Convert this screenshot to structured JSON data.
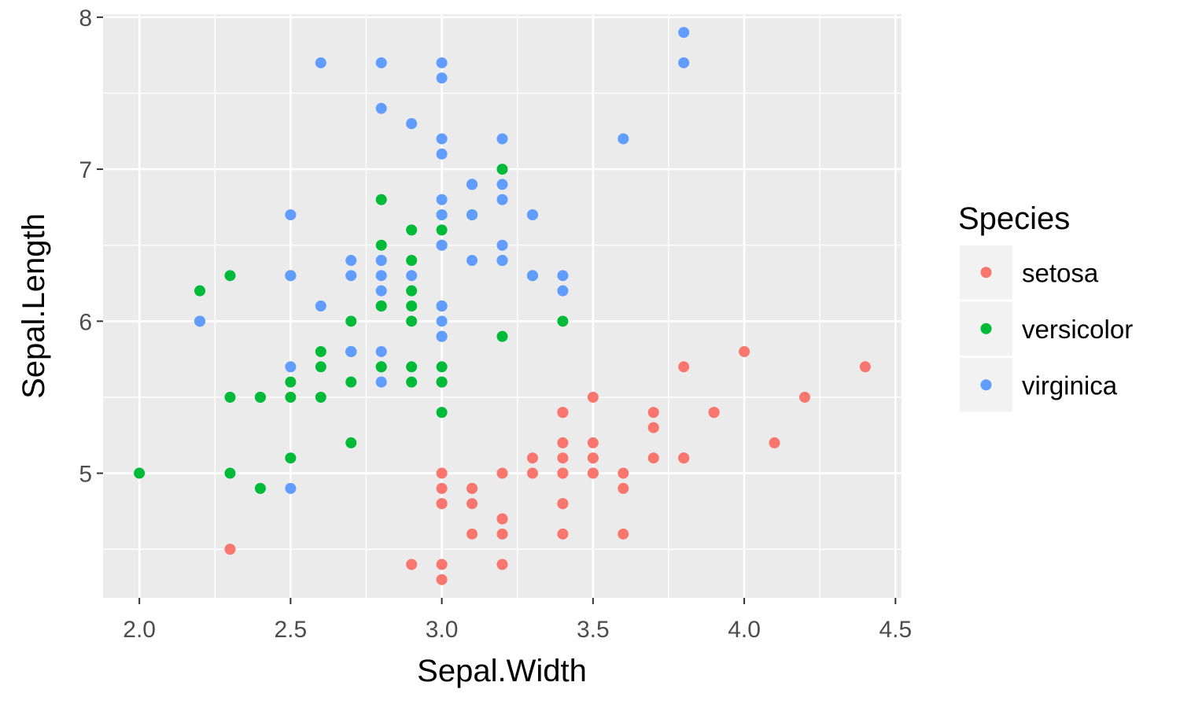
{
  "chart_data": {
    "type": "scatter",
    "xlabel": "Sepal.Width",
    "ylabel": "Sepal.Length",
    "xlim": [
      1.88,
      4.52
    ],
    "ylim": [
      4.18,
      8.02
    ],
    "x_ticks": [
      2.0,
      2.5,
      3.0,
      3.5,
      4.0,
      4.5
    ],
    "x_tick_labels": [
      "2.0",
      "2.5",
      "3.0",
      "3.5",
      "4.0",
      "4.5"
    ],
    "y_ticks": [
      5,
      6,
      7,
      8
    ],
    "y_tick_labels": [
      "5",
      "6",
      "7",
      "8"
    ],
    "grid": true,
    "legend": {
      "title": "Species",
      "position": "right"
    },
    "series": [
      {
        "name": "setosa",
        "color": "#F8766D",
        "points": [
          [
            3.5,
            5.1
          ],
          [
            3.0,
            4.9
          ],
          [
            3.2,
            4.7
          ],
          [
            3.1,
            4.6
          ],
          [
            3.6,
            5.0
          ],
          [
            3.9,
            5.4
          ],
          [
            3.4,
            4.6
          ],
          [
            3.4,
            5.0
          ],
          [
            2.9,
            4.4
          ],
          [
            3.1,
            4.9
          ],
          [
            3.7,
            5.4
          ],
          [
            3.4,
            4.8
          ],
          [
            3.0,
            4.8
          ],
          [
            3.0,
            4.3
          ],
          [
            4.0,
            5.8
          ],
          [
            4.4,
            5.7
          ],
          [
            3.9,
            5.4
          ],
          [
            3.5,
            5.1
          ],
          [
            3.8,
            5.7
          ],
          [
            3.8,
            5.1
          ],
          [
            3.4,
            5.4
          ],
          [
            3.7,
            5.1
          ],
          [
            3.6,
            4.6
          ],
          [
            3.3,
            5.1
          ],
          [
            3.4,
            4.8
          ],
          [
            3.0,
            5.0
          ],
          [
            3.4,
            5.0
          ],
          [
            3.5,
            5.2
          ],
          [
            3.4,
            5.2
          ],
          [
            3.2,
            4.7
          ],
          [
            3.1,
            4.8
          ],
          [
            3.4,
            5.4
          ],
          [
            4.1,
            5.2
          ],
          [
            4.2,
            5.5
          ],
          [
            3.1,
            4.9
          ],
          [
            3.2,
            5.0
          ],
          [
            3.5,
            5.5
          ],
          [
            3.6,
            4.9
          ],
          [
            3.0,
            4.4
          ],
          [
            3.4,
            5.1
          ],
          [
            3.5,
            5.0
          ],
          [
            2.3,
            4.5
          ],
          [
            3.2,
            4.4
          ],
          [
            3.5,
            5.0
          ],
          [
            3.8,
            5.1
          ],
          [
            3.0,
            4.8
          ],
          [
            3.8,
            5.1
          ],
          [
            3.2,
            4.6
          ],
          [
            3.7,
            5.3
          ],
          [
            3.3,
            5.0
          ]
        ]
      },
      {
        "name": "versicolor",
        "color": "#00BA38",
        "points": [
          [
            3.2,
            7.0
          ],
          [
            3.2,
            6.4
          ],
          [
            3.1,
            6.9
          ],
          [
            2.3,
            5.5
          ],
          [
            2.8,
            6.5
          ],
          [
            2.8,
            5.7
          ],
          [
            3.3,
            6.3
          ],
          [
            2.4,
            4.9
          ],
          [
            2.9,
            6.6
          ],
          [
            2.7,
            5.2
          ],
          [
            2.0,
            5.0
          ],
          [
            3.0,
            5.9
          ],
          [
            2.2,
            6.0
          ],
          [
            2.9,
            6.1
          ],
          [
            2.9,
            5.6
          ],
          [
            3.1,
            6.7
          ],
          [
            3.0,
            5.6
          ],
          [
            2.7,
            5.8
          ],
          [
            2.2,
            6.2
          ],
          [
            2.5,
            5.6
          ],
          [
            3.2,
            5.9
          ],
          [
            2.8,
            6.1
          ],
          [
            2.5,
            6.3
          ],
          [
            2.8,
            6.1
          ],
          [
            2.9,
            6.4
          ],
          [
            3.0,
            6.6
          ],
          [
            2.8,
            6.8
          ],
          [
            3.0,
            6.7
          ],
          [
            2.9,
            6.0
          ],
          [
            2.6,
            5.7
          ],
          [
            2.4,
            5.5
          ],
          [
            2.4,
            5.5
          ],
          [
            2.7,
            5.8
          ],
          [
            2.7,
            6.0
          ],
          [
            3.0,
            5.4
          ],
          [
            3.4,
            6.0
          ],
          [
            3.1,
            6.7
          ],
          [
            2.3,
            6.3
          ],
          [
            3.0,
            5.6
          ],
          [
            2.5,
            5.5
          ],
          [
            2.6,
            5.5
          ],
          [
            3.0,
            6.1
          ],
          [
            2.6,
            5.8
          ],
          [
            2.3,
            5.0
          ],
          [
            2.7,
            5.6
          ],
          [
            3.0,
            5.7
          ],
          [
            2.9,
            5.7
          ],
          [
            2.9,
            6.2
          ],
          [
            2.5,
            5.1
          ],
          [
            2.8,
            5.7
          ]
        ]
      },
      {
        "name": "virginica",
        "color": "#619CFF",
        "points": [
          [
            3.3,
            6.3
          ],
          [
            2.7,
            5.8
          ],
          [
            3.0,
            7.1
          ],
          [
            2.9,
            6.3
          ],
          [
            3.0,
            6.5
          ],
          [
            3.0,
            7.6
          ],
          [
            2.5,
            4.9
          ],
          [
            2.9,
            7.3
          ],
          [
            2.5,
            6.7
          ],
          [
            3.6,
            7.2
          ],
          [
            3.2,
            6.5
          ],
          [
            2.7,
            6.4
          ],
          [
            3.0,
            6.8
          ],
          [
            2.5,
            5.7
          ],
          [
            2.8,
            5.8
          ],
          [
            3.2,
            6.4
          ],
          [
            3.0,
            6.5
          ],
          [
            3.8,
            7.7
          ],
          [
            2.6,
            7.7
          ],
          [
            2.2,
            6.0
          ],
          [
            3.2,
            6.9
          ],
          [
            2.8,
            5.6
          ],
          [
            2.8,
            7.7
          ],
          [
            2.7,
            6.3
          ],
          [
            3.3,
            6.7
          ],
          [
            3.2,
            7.2
          ],
          [
            2.8,
            6.2
          ],
          [
            3.0,
            6.1
          ],
          [
            2.8,
            6.4
          ],
          [
            3.0,
            7.2
          ],
          [
            2.8,
            7.4
          ],
          [
            3.8,
            7.9
          ],
          [
            2.8,
            6.4
          ],
          [
            2.8,
            6.3
          ],
          [
            2.6,
            6.1
          ],
          [
            3.0,
            7.7
          ],
          [
            3.4,
            6.3
          ],
          [
            3.1,
            6.4
          ],
          [
            3.0,
            6.0
          ],
          [
            3.1,
            6.9
          ],
          [
            3.1,
            6.7
          ],
          [
            3.1,
            6.9
          ],
          [
            2.7,
            5.8
          ],
          [
            3.2,
            6.8
          ],
          [
            3.3,
            6.7
          ],
          [
            3.0,
            6.7
          ],
          [
            2.5,
            6.3
          ],
          [
            3.0,
            6.5
          ],
          [
            3.4,
            6.2
          ],
          [
            3.0,
            5.9
          ]
        ]
      }
    ]
  }
}
